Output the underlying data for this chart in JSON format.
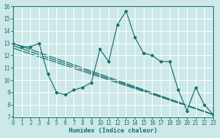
{
  "xlabel": "Humidex (Indice chaleur)",
  "xlim": [
    0,
    23
  ],
  "ylim": [
    7,
    16
  ],
  "xticks": [
    0,
    1,
    2,
    3,
    4,
    5,
    6,
    7,
    8,
    9,
    10,
    11,
    12,
    13,
    14,
    15,
    16,
    17,
    18,
    19,
    20,
    21,
    22,
    23
  ],
  "yticks": [
    7,
    8,
    9,
    10,
    11,
    12,
    13,
    14,
    15,
    16
  ],
  "bg_color": "#cce8e8",
  "grid_color": "#ffffff",
  "line_color": "#1a6e6e",
  "main_line": {
    "x": [
      0,
      1,
      2,
      3,
      4,
      5,
      6,
      7,
      8,
      9,
      10,
      11,
      12,
      13,
      14,
      15,
      16,
      17,
      18,
      19,
      20,
      21,
      22,
      23
    ],
    "y": [
      13.0,
      12.7,
      12.7,
      13.0,
      10.5,
      9.0,
      8.8,
      9.2,
      9.4,
      9.8,
      12.5,
      11.5,
      14.5,
      15.6,
      13.5,
      12.2,
      12.0,
      11.5,
      11.5,
      9.2,
      7.5,
      9.4,
      8.0,
      7.2
    ]
  },
  "straight_lines": [
    {
      "x": [
        0,
        23
      ],
      "y": [
        13.0,
        7.2
      ]
    },
    {
      "x": [
        0,
        23
      ],
      "y": [
        12.8,
        7.2
      ]
    },
    {
      "x": [
        0,
        23
      ],
      "y": [
        12.6,
        7.2
      ]
    }
  ]
}
